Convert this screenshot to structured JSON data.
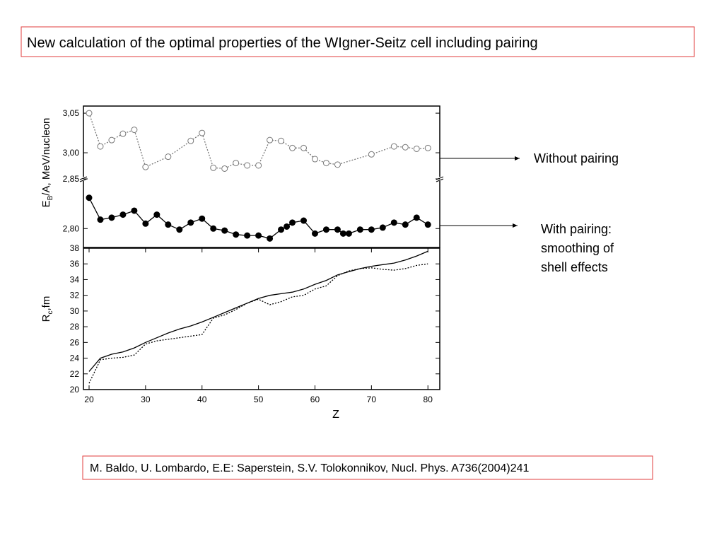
{
  "title": "New calculation of the optimal properties of the WIgner-Seitz cell including pairing",
  "citation": "M. Baldo, U. Lombardo, E.E: Saperstein, S.V. Tolokonnikov,  Nucl. Phys. A736(2004)241",
  "annotations": [
    {
      "lines": [
        "Without pairing"
      ]
    },
    {
      "lines": [
        "With pairing:",
        "smoothing of",
        "shell effects"
      ]
    }
  ],
  "chart_data": [
    {
      "type": "line",
      "ylabel": {
        "main": "E",
        "sub": "B",
        "rest": "/A, MeV/nucleon"
      },
      "broken_axis": true,
      "xlim": [
        19,
        82.1
      ],
      "ylim": [
        2.781,
        2.85
      ],
      "yticks": [
        {
          "value": 2.85,
          "label": "2,85"
        },
        {
          "value": 2.8,
          "label": "2,80"
        }
      ],
      "y2lim": [
        2.967,
        3.059
      ],
      "y2ticks": [
        {
          "value": 3.05,
          "label": "3,05"
        },
        {
          "value": 3.0,
          "label": "3,00"
        }
      ],
      "series": [
        {
          "axis": "y2",
          "marker": "open",
          "line": "dotted",
          "color": "#777777",
          "x": [
            20,
            22,
            24,
            26,
            28,
            30,
            34,
            38,
            40,
            42,
            44,
            46,
            48,
            50,
            52,
            54,
            56,
            58,
            60,
            62,
            64,
            70,
            74,
            76,
            78,
            80
          ],
          "values": [
            3.05,
            3.008,
            3.016,
            3.024,
            3.029,
            2.982,
            2.995,
            3.015,
            3.025,
            2.981,
            2.98,
            2.987,
            2.984,
            2.984,
            3.016,
            3.015,
            3.006,
            3.006,
            2.992,
            2.987,
            2.985,
            2.998,
            3.008,
            3.007,
            3.005,
            3.006
          ]
        },
        {
          "marker": "filled",
          "line": "solid",
          "color": "#000000",
          "x": [
            20,
            22,
            24,
            26,
            28,
            30,
            32,
            34,
            36,
            38,
            40,
            42,
            44,
            46,
            48,
            50,
            52,
            54,
            55,
            56,
            58,
            60,
            62,
            64,
            65,
            66,
            68,
            70,
            72,
            74,
            76,
            78,
            80
          ],
          "values": [
            2.831,
            2.809,
            2.811,
            2.814,
            2.818,
            2.805,
            2.814,
            2.804,
            2.799,
            2.806,
            2.81,
            2.8,
            2.798,
            2.794,
            2.793,
            2.793,
            2.79,
            2.799,
            2.802,
            2.806,
            2.808,
            2.795,
            2.799,
            2.799,
            2.795,
            2.795,
            2.799,
            2.799,
            2.801,
            2.806,
            2.804,
            2.811,
            2.804
          ]
        }
      ]
    },
    {
      "type": "line",
      "ylabel": {
        "main": "R",
        "sub": "c",
        "rest": ",fm"
      },
      "xlabel": "Z",
      "xlim": [
        19,
        82.1
      ],
      "xticks": [
        20,
        30,
        40,
        50,
        60,
        70,
        80
      ],
      "ylim": [
        20,
        38
      ],
      "yticks": [
        20,
        22,
        24,
        26,
        28,
        30,
        32,
        34,
        36,
        38
      ],
      "series": [
        {
          "line": "solid",
          "color": "#000000",
          "x": [
            20,
            22,
            24,
            26,
            28,
            30,
            32,
            34,
            36,
            38,
            40,
            42,
            44,
            46,
            48,
            50,
            52,
            54,
            56,
            58,
            60,
            62,
            64,
            66,
            68,
            70,
            72,
            74,
            76,
            78,
            80
          ],
          "values": [
            22.3,
            24.0,
            24.5,
            24.8,
            25.3,
            26.0,
            26.6,
            27.2,
            27.7,
            28.1,
            28.6,
            29.2,
            29.8,
            30.4,
            31.0,
            31.6,
            32.0,
            32.2,
            32.4,
            32.8,
            33.4,
            33.9,
            34.6,
            35.0,
            35.4,
            35.7,
            35.9,
            36.1,
            36.5,
            37.0,
            37.6
          ]
        },
        {
          "line": "dotted",
          "color": "#000000",
          "x": [
            20,
            22,
            24,
            26,
            28,
            30,
            32,
            34,
            36,
            38,
            40,
            42,
            44,
            46,
            48,
            50,
            52,
            54,
            56,
            58,
            60,
            62,
            64,
            66,
            68,
            70,
            72,
            74,
            76,
            78,
            80
          ],
          "values": [
            20.8,
            23.8,
            24.0,
            24.1,
            24.4,
            25.8,
            26.2,
            26.4,
            26.6,
            26.8,
            27.0,
            29.1,
            29.5,
            30.2,
            31.0,
            31.5,
            30.8,
            31.2,
            31.8,
            32.0,
            32.8,
            33.2,
            34.5,
            35.1,
            35.4,
            35.5,
            35.3,
            35.2,
            35.4,
            35.8,
            36.0
          ]
        }
      ]
    }
  ]
}
